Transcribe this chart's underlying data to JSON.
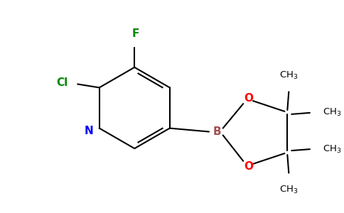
{
  "bg_color": "#ffffff",
  "bond_color": "#000000",
  "N_color": "#0000ff",
  "Cl_color": "#008800",
  "F_color": "#008800",
  "B_color": "#a05050",
  "O_color": "#ff0000",
  "lw": 1.5,
  "figsize": [
    4.84,
    3.0
  ],
  "dpi": 100,
  "xlim": [
    0,
    484
  ],
  "ylim": [
    0,
    300
  ]
}
